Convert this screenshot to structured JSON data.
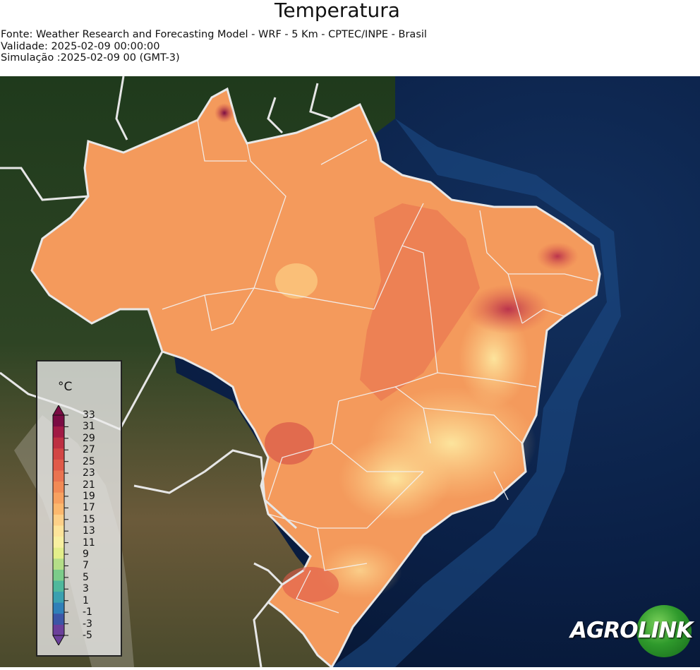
{
  "header": {
    "title": "Temperatura",
    "source": "Fonte: Weather Research and Forecasting Model - WRF - 5 Km - CPTEC/INPE - Brasil",
    "validity": "Validade: 2025-02-09 00:00:00",
    "simulation": "Simulação :2025-02-09 00 (GMT-3)"
  },
  "legend": {
    "unit": "°C",
    "ticks": [
      "33",
      "31",
      "29",
      "27",
      "25",
      "23",
      "21",
      "19",
      "17",
      "15",
      "13",
      "11",
      "9",
      "7",
      "5",
      "3",
      "1",
      "-1",
      "-3",
      "-5"
    ],
    "colors": [
      "#6b3f9a",
      "#3c55a6",
      "#2f7fb8",
      "#3aa0b0",
      "#4fb89c",
      "#7ccc8a",
      "#b4de88",
      "#e3ee8a",
      "#f8f0a0",
      "#fde49a",
      "#fdd088",
      "#fcb86e",
      "#f8a160",
      "#f28a55",
      "#ea7350",
      "#e05a49",
      "#d24544",
      "#bd2f42",
      "#a11a45",
      "#7a0b43"
    ]
  },
  "colors": {
    "ocean": "#0b1e3f",
    "land_neighbors": "#3a4a2a",
    "brazil_base": "#f49a5c",
    "border": "#e8e8e8"
  },
  "logo": {
    "left": "AGRO",
    "right": "LINK"
  }
}
